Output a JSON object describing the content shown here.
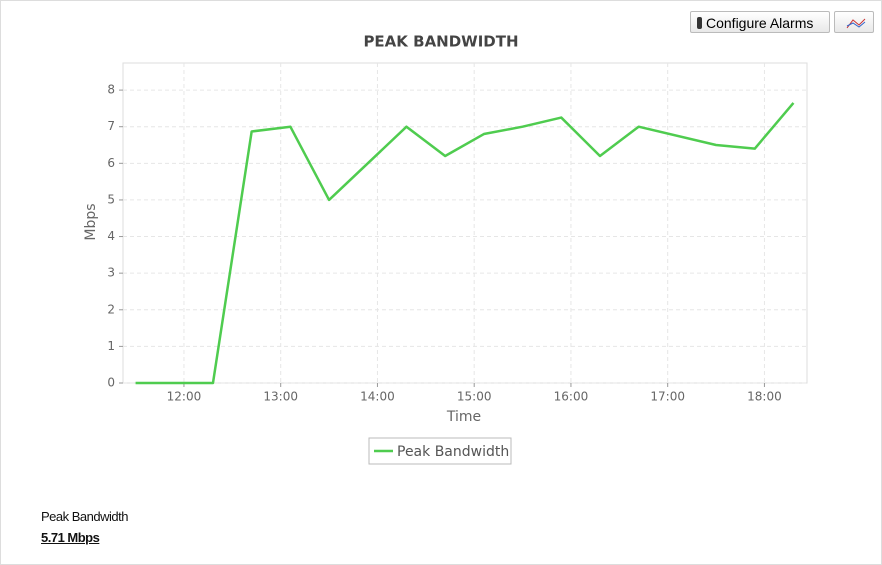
{
  "toolbar": {
    "button": "Configure Alarms"
  },
  "chart_data": {
    "type": "line",
    "title": "PEAK BANDWIDTH",
    "x_label": "Time",
    "y_label": "Mbps",
    "x": [
      11.5,
      12.3,
      12.7,
      13.1,
      13.5,
      14.3,
      14.7,
      15.1,
      15.5,
      15.9,
      16.3,
      16.7,
      17.5,
      17.9,
      18.3
    ],
    "series": [
      {
        "name": "Peak Bandwidth",
        "color": "#4fcc4f",
        "values": [
          0,
          0,
          6.87,
          7.0,
          5.0,
          7.0,
          6.2,
          6.8,
          7.0,
          7.25,
          6.2,
          7.0,
          6.5,
          6.4,
          7.65
        ]
      }
    ],
    "xlim": [
      11.37,
      18.44
    ],
    "xticks": [
      {
        "value": 12,
        "label": "12:00"
      },
      {
        "value": 13,
        "label": "13:00"
      },
      {
        "value": 14,
        "label": "14:00"
      },
      {
        "value": 15,
        "label": "15:00"
      },
      {
        "value": 16,
        "label": "16:00"
      },
      {
        "value": 17,
        "label": "17:00"
      },
      {
        "value": 18,
        "label": "18:00"
      }
    ],
    "ylim": [
      0,
      8.74
    ],
    "yticks": [
      0,
      1,
      2,
      3,
      4,
      5,
      6,
      7,
      8
    ],
    "grid": true
  },
  "summary": {
    "label": "Peak Bandwidth",
    "value": "5.71 Mbps"
  }
}
